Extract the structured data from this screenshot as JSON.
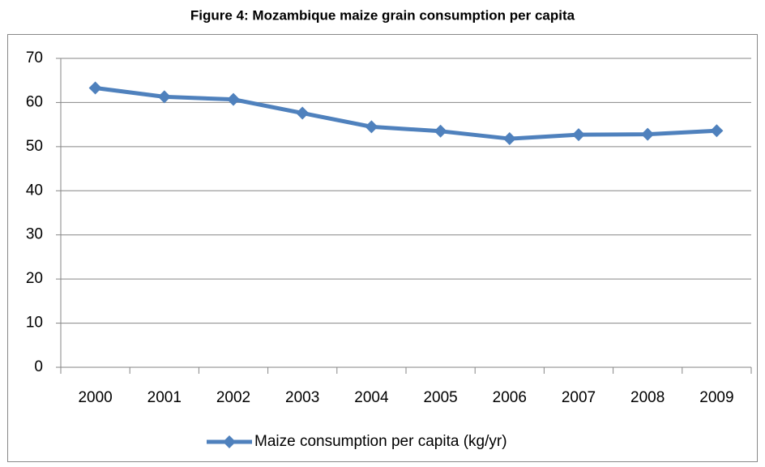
{
  "chart_data": {
    "type": "line",
    "title": "Figure 4: Mozambique maize grain consumption per capita",
    "categories": [
      "2000",
      "2001",
      "2002",
      "2003",
      "2004",
      "2005",
      "2006",
      "2007",
      "2008",
      "2009"
    ],
    "series": [
      {
        "name": "Maize consumption per capita (kg/yr)",
        "color": "#4f81bd",
        "values": [
          63.3,
          61.3,
          60.7,
          57.6,
          54.5,
          53.5,
          51.8,
          52.7,
          52.8,
          53.6
        ]
      }
    ],
    "ylim": [
      0,
      70
    ],
    "yticks": [
      0,
      10,
      20,
      30,
      40,
      50,
      60,
      70
    ],
    "grid": true,
    "legend": "bottom"
  }
}
